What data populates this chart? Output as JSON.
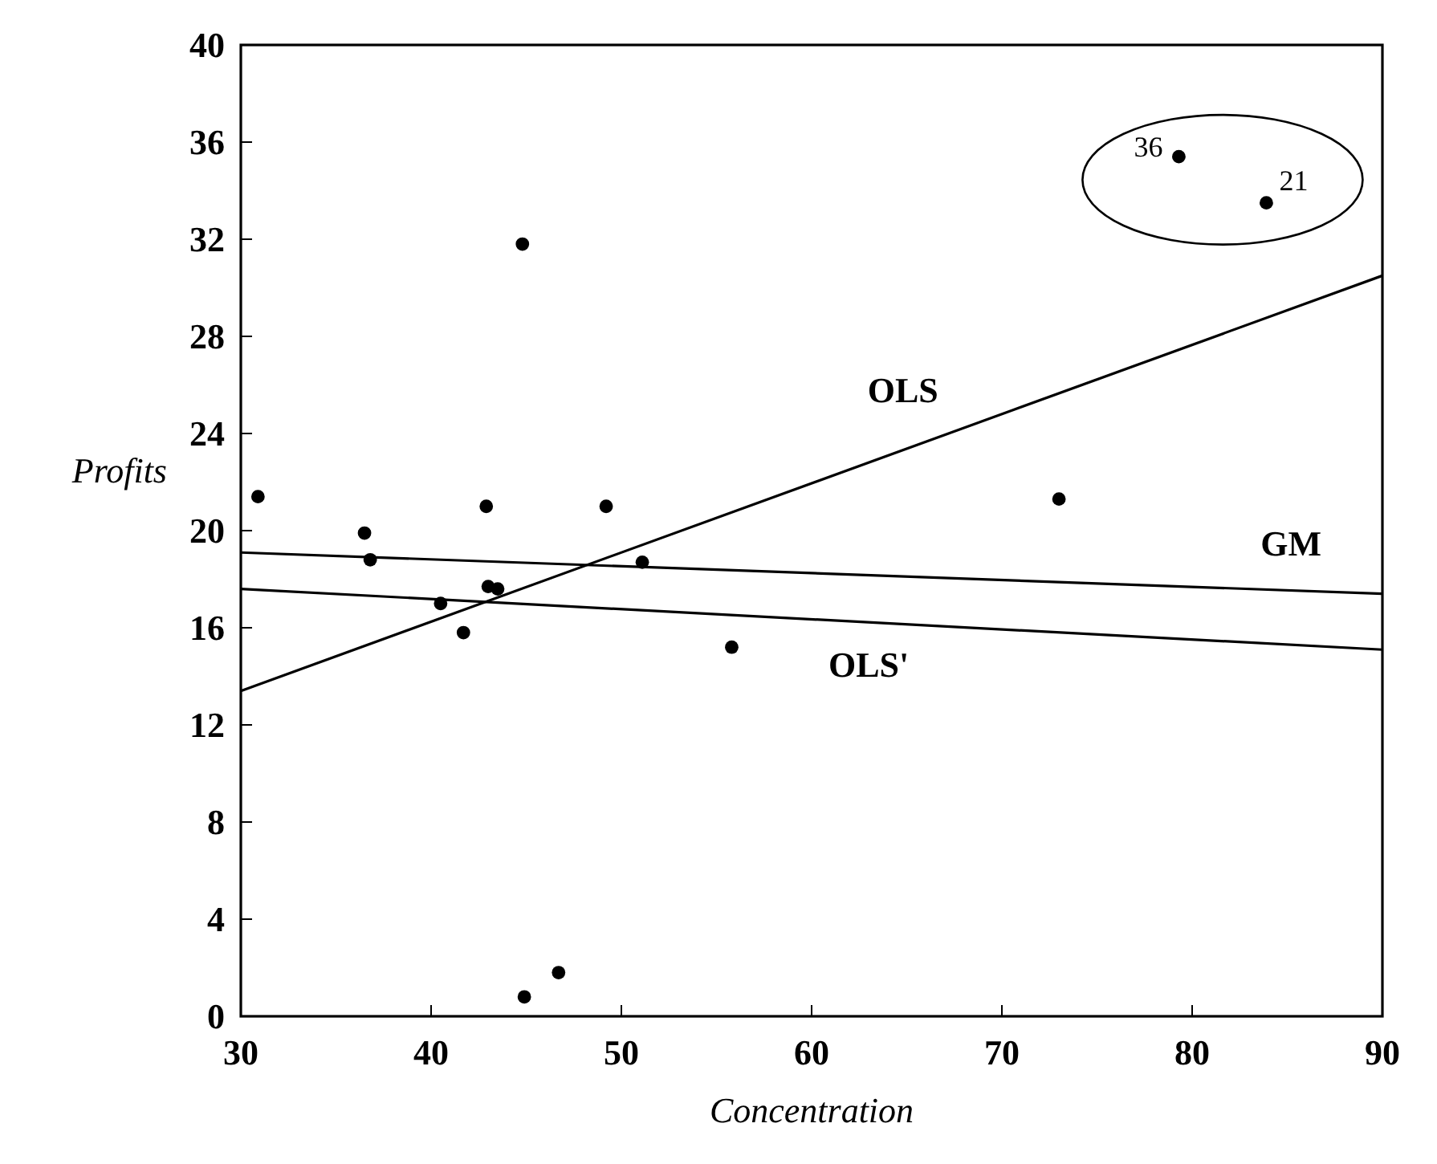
{
  "chart_data": {
    "type": "scatter",
    "xlabel": "Concentration",
    "ylabel": "Profits",
    "xlim": [
      30,
      90
    ],
    "ylim": [
      0,
      40
    ],
    "xticks": [
      30,
      40,
      50,
      60,
      70,
      80,
      90
    ],
    "yticks": [
      0,
      4,
      8,
      12,
      16,
      20,
      24,
      28,
      32,
      36,
      40
    ],
    "grid": false,
    "marker": "circle",
    "series": [
      {
        "color": "#000000",
        "x": [
          30.9,
          36.5,
          36.8,
          40.5,
          41.7,
          42.9,
          43.0,
          43.5,
          44.8,
          44.9,
          46.7,
          49.2,
          51.1,
          55.8,
          73.0,
          79.3,
          83.9
        ],
        "values": [
          21.4,
          19.9,
          18.8,
          17.0,
          15.8,
          21.0,
          17.7,
          17.6,
          31.8,
          0.8,
          1.8,
          21.0,
          18.7,
          15.2,
          21.3,
          35.4,
          33.5
        ]
      },
      {
        "type": "line",
        "name": "OLS",
        "color": "#000000",
        "marker": "none",
        "line_style": "solid",
        "x": [
          30,
          90
        ],
        "values": [
          13.4,
          30.5
        ]
      },
      {
        "type": "line",
        "name": "GM",
        "color": "#000000",
        "marker": "none",
        "line_style": "solid",
        "x": [
          30,
          90
        ],
        "values": [
          19.1,
          17.4
        ]
      },
      {
        "type": "line",
        "name": "OLS'",
        "color": "#000000",
        "marker": "none",
        "line_style": "solid",
        "x": [
          30,
          90
        ],
        "values": [
          17.6,
          15.1
        ]
      }
    ],
    "annotations": [
      {
        "text": "36",
        "x": 79.3,
        "y": 35.4
      },
      {
        "text": "21",
        "x": 83.9,
        "y": 33.5
      }
    ]
  }
}
